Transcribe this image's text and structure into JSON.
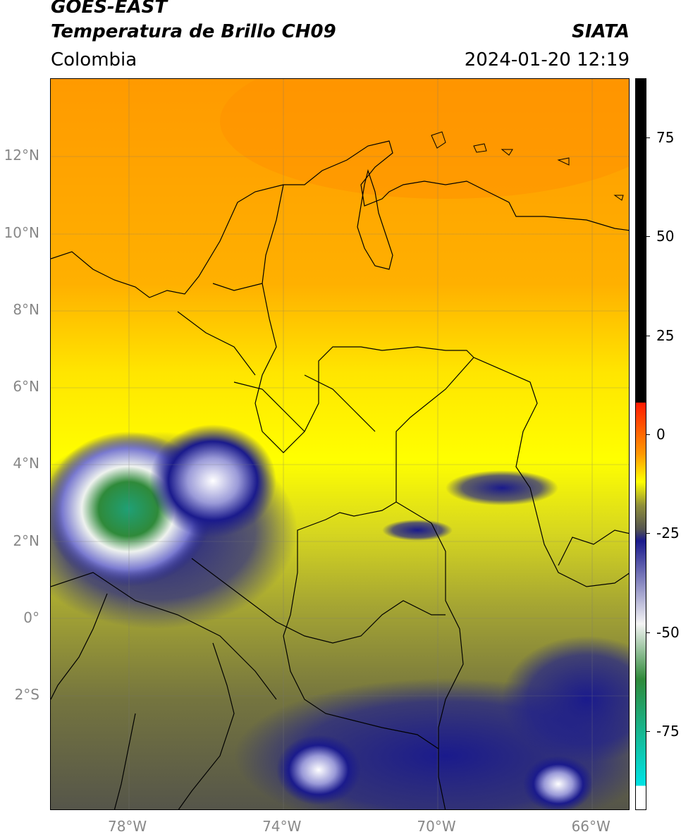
{
  "header": {
    "title_line1": "GOES-EAST",
    "title_line2": "Temperatura de Brillo CH09",
    "region": "Colombia",
    "source": "SIATA",
    "datetime": "2024-01-20 12:19"
  },
  "map": {
    "lat_labels": [
      {
        "label": "12°N",
        "lat": 12
      },
      {
        "label": "10°N",
        "lat": 10
      },
      {
        "label": "8°N",
        "lat": 8
      },
      {
        "label": "6°N",
        "lat": 6
      },
      {
        "label": "4°N",
        "lat": 4
      },
      {
        "label": "2°N",
        "lat": 2
      },
      {
        "label": "0°",
        "lat": 0
      },
      {
        "label": "2°S",
        "lat": -2
      }
    ],
    "lon_labels": [
      {
        "label": "78°W",
        "lon": -78
      },
      {
        "label": "74°W",
        "lon": -74
      },
      {
        "label": "70°W",
        "lon": -70
      },
      {
        "label": "66°W",
        "lon": -66
      }
    ],
    "extent": {
      "lon_min": -80,
      "lon_max": -65,
      "lat_min": -5,
      "lat_max": 14
    }
  },
  "colorbar": {
    "vmin": -95,
    "vmax": 90,
    "ticks": [
      {
        "label": "75",
        "value": 75
      },
      {
        "label": "50",
        "value": 50
      },
      {
        "label": "25",
        "value": 25
      },
      {
        "label": "0",
        "value": 0
      },
      {
        "label": "-25",
        "value": -25
      },
      {
        "label": "-50",
        "value": -50
      },
      {
        "label": "-75",
        "value": -75
      }
    ],
    "colors": {
      "black": "#000000",
      "red": "#ff1a00",
      "orange": "#ff9900",
      "yellow": "#ffff00",
      "olive": "#8f8f3a",
      "gray": "#55554f",
      "navy": "#1a1a8c",
      "white": "#f4f4f4",
      "green": "#2f8a3a",
      "cyan": "#00e0e0"
    }
  }
}
